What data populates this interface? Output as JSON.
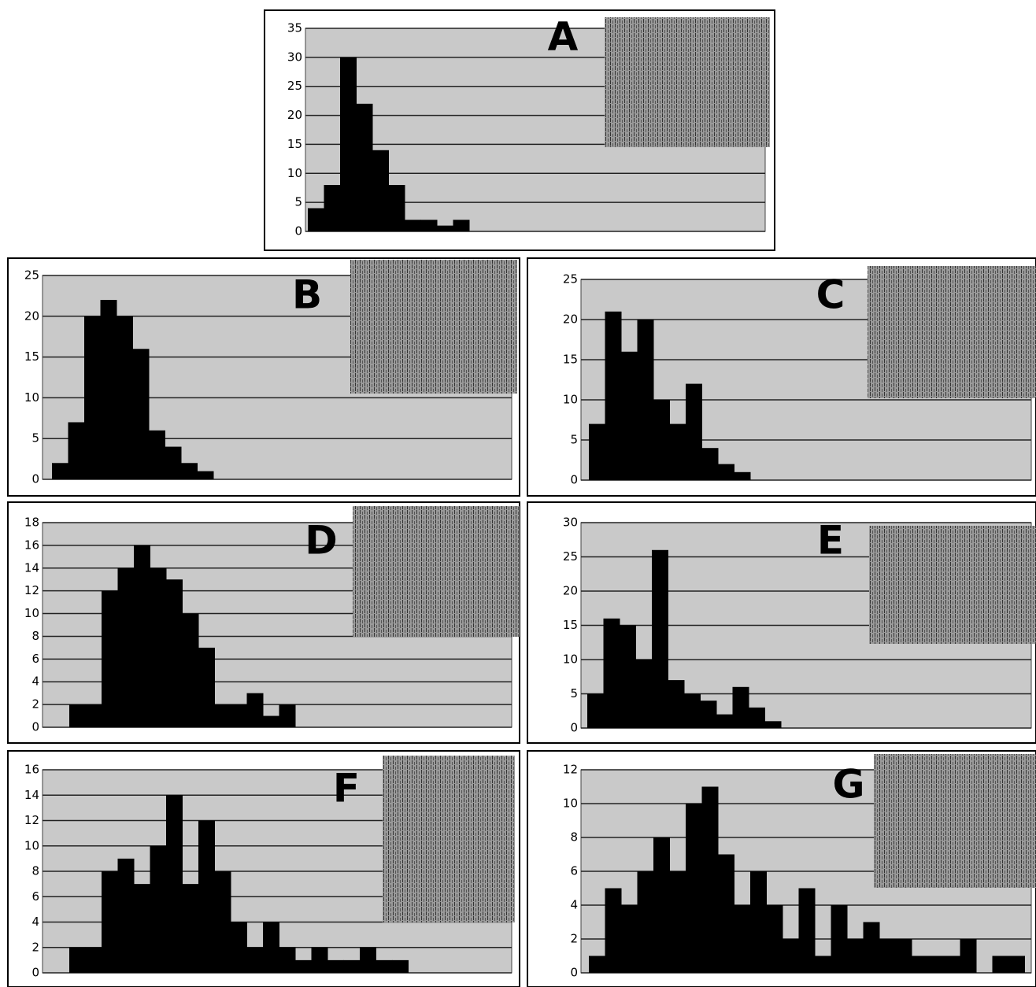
{
  "chart_data": [
    {
      "type": "bar",
      "title": "A",
      "values": [
        4,
        8,
        30,
        22,
        14,
        8,
        2,
        2,
        1,
        2
      ],
      "color": "#000000",
      "ylim": [
        0,
        35
      ],
      "yticks": [
        0,
        5,
        10,
        15,
        20,
        25,
        30,
        35
      ],
      "grid": true
    },
    {
      "type": "bar",
      "title": "B",
      "values": [
        2,
        7,
        20,
        22,
        20,
        16,
        6,
        4,
        2,
        1
      ],
      "color": "#000000",
      "ylim": [
        0,
        25
      ],
      "yticks": [
        0,
        5,
        10,
        15,
        20,
        25
      ],
      "grid": true
    },
    {
      "type": "bar",
      "title": "C",
      "values": [
        7,
        21,
        16,
        20,
        10,
        7,
        12,
        4,
        2,
        1
      ],
      "color": "#000000",
      "ylim": [
        0,
        25
      ],
      "yticks": [
        0,
        5,
        10,
        15,
        20,
        25
      ],
      "grid": true
    },
    {
      "type": "bar",
      "title": "D",
      "values": [
        2,
        2,
        12,
        14,
        16,
        14,
        13,
        10,
        7,
        2,
        2,
        3,
        1,
        2
      ],
      "color": "#000000",
      "ylim": [
        0,
        18
      ],
      "yticks": [
        0,
        2,
        4,
        6,
        8,
        10,
        12,
        14,
        16,
        18
      ],
      "grid": true
    },
    {
      "type": "bar",
      "title": "E",
      "values": [
        5,
        16,
        15,
        10,
        26,
        7,
        5,
        4,
        2,
        6,
        3,
        1
      ],
      "color": "#000000",
      "ylim": [
        0,
        30
      ],
      "yticks": [
        0,
        5,
        10,
        15,
        20,
        25,
        30
      ],
      "grid": true
    },
    {
      "type": "bar",
      "title": "F",
      "values": [
        2,
        2,
        8,
        9,
        7,
        10,
        14,
        7,
        12,
        8,
        4,
        2,
        4,
        2,
        1,
        2,
        1,
        1,
        2,
        1,
        1
      ],
      "color": "#000000",
      "ylim": [
        0,
        16
      ],
      "yticks": [
        0,
        2,
        4,
        6,
        8,
        10,
        12,
        14,
        16
      ],
      "grid": true
    },
    {
      "type": "bar",
      "title": "G",
      "values": [
        1,
        5,
        4,
        6,
        8,
        6,
        10,
        11,
        7,
        4,
        6,
        4,
        2,
        5,
        1,
        4,
        2,
        3,
        2,
        2,
        1,
        1,
        1,
        2,
        0,
        1,
        1
      ],
      "color": "#000000",
      "ylim": [
        0,
        12
      ],
      "yticks": [
        0,
        2,
        4,
        6,
        8,
        10,
        12
      ],
      "grid": true
    }
  ]
}
